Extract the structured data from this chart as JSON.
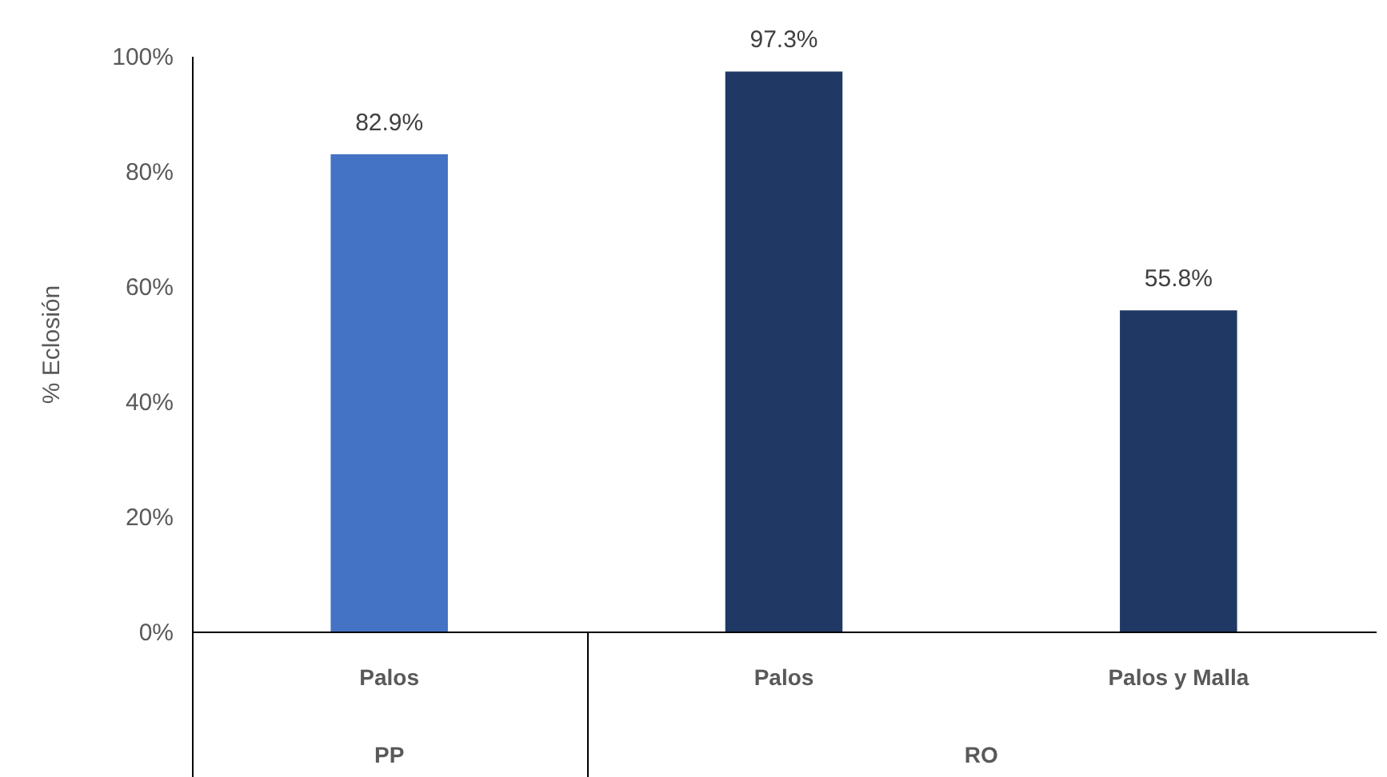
{
  "chart_data": {
    "type": "bar",
    "ylabel": "% Eclosión",
    "categories": [
      "Palos",
      "Palos",
      "Palos y Malla"
    ],
    "values": [
      82.9,
      97.3,
      55.8
    ],
    "colors": [
      "#4472c4",
      "#1f3864",
      "#1f3864"
    ],
    "value_labels": [
      "82.9%",
      "97.3%",
      "55.8%"
    ],
    "ylim": [
      0,
      100
    ],
    "yticks": [
      {
        "value": 0,
        "label": "0%"
      },
      {
        "value": 20,
        "label": "20%"
      },
      {
        "value": 40,
        "label": "40%"
      },
      {
        "value": 60,
        "label": "60%"
      },
      {
        "value": 80,
        "label": "80%"
      },
      {
        "value": 100,
        "label": "100%"
      }
    ],
    "annotations": [
      "PP",
      "RO"
    ],
    "grid": false
  }
}
